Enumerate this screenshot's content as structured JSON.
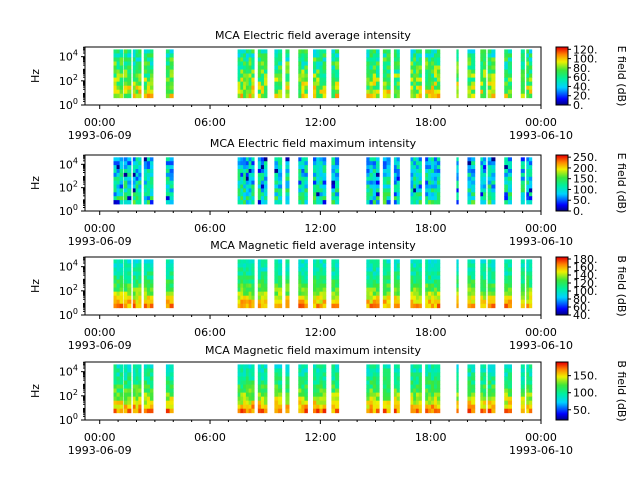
{
  "chart_data": [
    {
      "type": "heatmap",
      "title": "MCA  Electric field average intensity",
      "ylabel": "Hz",
      "y_ticks": [
        "10",
        "10",
        "10"
      ],
      "y_tick_exps": [
        "0",
        "2",
        "4"
      ],
      "x_ticks": [
        "00:00",
        "06:00",
        "12:00",
        "18:00",
        "00:00"
      ],
      "x_dates": [
        "1993-06-09",
        "1993-06-10"
      ],
      "colorbar_label": "E field (dB)",
      "colorbar_ticks": [
        "0.",
        "20.",
        "40.",
        "60.",
        "80.",
        "100.",
        "120."
      ],
      "colorbar_range": [
        0,
        125
      ],
      "data_intervals_hours": [
        [
          0.75,
          1.25
        ],
        [
          1.3,
          1.7
        ],
        [
          1.8,
          2.25
        ],
        [
          2.4,
          2.9
        ],
        [
          3.6,
          4.0
        ],
        [
          7.5,
          8.4
        ],
        [
          8.6,
          9.1
        ],
        [
          9.5,
          9.9
        ],
        [
          10.1,
          10.3
        ],
        [
          10.8,
          11.3
        ],
        [
          11.6,
          12.3
        ],
        [
          12.6,
          13.0
        ],
        [
          14.5,
          15.2
        ],
        [
          15.4,
          15.8
        ],
        [
          16.0,
          16.3
        ],
        [
          16.9,
          17.5
        ],
        [
          17.7,
          18.5
        ],
        [
          19.4,
          19.5
        ],
        [
          20.0,
          20.4
        ],
        [
          20.7,
          21.0
        ],
        [
          21.1,
          21.5
        ],
        [
          22.0,
          22.4
        ],
        [
          22.9,
          23.1
        ],
        [
          23.2,
          23.5
        ]
      ]
    },
    {
      "type": "heatmap",
      "title": "MCA  Electric field maximum intensity",
      "ylabel": "Hz",
      "y_ticks": [
        "10",
        "10",
        "10"
      ],
      "y_tick_exps": [
        "0",
        "2",
        "4"
      ],
      "x_ticks": [
        "00:00",
        "06:00",
        "12:00",
        "18:00",
        "00:00"
      ],
      "x_dates": [
        "1993-06-09",
        "1993-06-10"
      ],
      "colorbar_label": "E field (dB)",
      "colorbar_ticks": [
        "0.",
        "50.",
        "100.",
        "150.",
        "200.",
        "250."
      ],
      "colorbar_range": [
        0,
        260
      ],
      "data_intervals_hours": [
        [
          0.75,
          1.25
        ],
        [
          1.3,
          1.7
        ],
        [
          1.8,
          2.25
        ],
        [
          2.4,
          2.9
        ],
        [
          3.6,
          4.0
        ],
        [
          7.5,
          8.4
        ],
        [
          8.6,
          9.1
        ],
        [
          9.5,
          9.9
        ],
        [
          10.1,
          10.3
        ],
        [
          10.8,
          11.3
        ],
        [
          11.6,
          12.3
        ],
        [
          12.6,
          13.0
        ],
        [
          14.5,
          15.2
        ],
        [
          15.4,
          15.8
        ],
        [
          16.0,
          16.3
        ],
        [
          16.9,
          17.5
        ],
        [
          17.7,
          18.5
        ],
        [
          19.4,
          19.5
        ],
        [
          20.0,
          20.4
        ],
        [
          20.7,
          21.0
        ],
        [
          21.1,
          21.5
        ],
        [
          22.0,
          22.4
        ],
        [
          22.9,
          23.1
        ],
        [
          23.2,
          23.5
        ]
      ]
    },
    {
      "type": "heatmap",
      "title": "MCA  Magnetic field average intensity",
      "ylabel": "Hz",
      "y_ticks": [
        "10",
        "10",
        "10"
      ],
      "y_tick_exps": [
        "0",
        "2",
        "4"
      ],
      "x_ticks": [
        "00:00",
        "06:00",
        "12:00",
        "18:00",
        "00:00"
      ],
      "x_dates": [
        "1993-06-09",
        "1993-06-10"
      ],
      "colorbar_label": "B field (dB)",
      "colorbar_ticks": [
        "40.",
        "60.",
        "80.",
        "100.",
        "120.",
        "140.",
        "160.",
        "180."
      ],
      "colorbar_range": [
        40,
        185
      ],
      "data_intervals_hours": [
        [
          0.75,
          1.25
        ],
        [
          1.3,
          1.7
        ],
        [
          1.8,
          2.25
        ],
        [
          2.4,
          2.9
        ],
        [
          3.6,
          4.0
        ],
        [
          7.5,
          8.4
        ],
        [
          8.6,
          9.1
        ],
        [
          9.5,
          9.9
        ],
        [
          10.1,
          10.3
        ],
        [
          10.8,
          11.3
        ],
        [
          11.6,
          12.3
        ],
        [
          12.6,
          13.0
        ],
        [
          14.5,
          15.2
        ],
        [
          15.4,
          15.8
        ],
        [
          16.0,
          16.3
        ],
        [
          16.9,
          17.5
        ],
        [
          17.7,
          18.5
        ],
        [
          19.4,
          19.5
        ],
        [
          20.0,
          20.4
        ],
        [
          20.7,
          21.0
        ],
        [
          21.1,
          21.5
        ],
        [
          22.0,
          22.4
        ],
        [
          22.9,
          23.1
        ],
        [
          23.2,
          23.5
        ]
      ]
    },
    {
      "type": "heatmap",
      "title": "MCA  Magnetic field maximum intensity",
      "ylabel": "Hz",
      "y_ticks": [
        "10",
        "10",
        "10"
      ],
      "y_tick_exps": [
        "0",
        "2",
        "4"
      ],
      "x_ticks": [
        "00:00",
        "06:00",
        "12:00",
        "18:00",
        "00:00"
      ],
      "x_dates": [
        "1993-06-09",
        "1993-06-10"
      ],
      "colorbar_label": "B field (dB)",
      "colorbar_ticks": [
        "50.",
        "100.",
        "150."
      ],
      "colorbar_range": [
        20,
        190
      ],
      "data_intervals_hours": [
        [
          0.75,
          1.25
        ],
        [
          1.3,
          1.7
        ],
        [
          1.8,
          2.25
        ],
        [
          2.4,
          2.9
        ],
        [
          3.6,
          4.0
        ],
        [
          7.5,
          8.4
        ],
        [
          8.6,
          9.1
        ],
        [
          9.5,
          9.9
        ],
        [
          10.1,
          10.3
        ],
        [
          10.8,
          11.3
        ],
        [
          11.6,
          12.3
        ],
        [
          12.6,
          13.0
        ],
        [
          14.5,
          15.2
        ],
        [
          15.4,
          15.8
        ],
        [
          16.0,
          16.3
        ],
        [
          16.9,
          17.5
        ],
        [
          17.7,
          18.5
        ],
        [
          19.4,
          19.5
        ],
        [
          20.0,
          20.4
        ],
        [
          20.7,
          21.0
        ],
        [
          21.1,
          21.5
        ],
        [
          22.0,
          22.4
        ],
        [
          22.9,
          23.1
        ],
        [
          23.2,
          23.5
        ]
      ]
    }
  ]
}
